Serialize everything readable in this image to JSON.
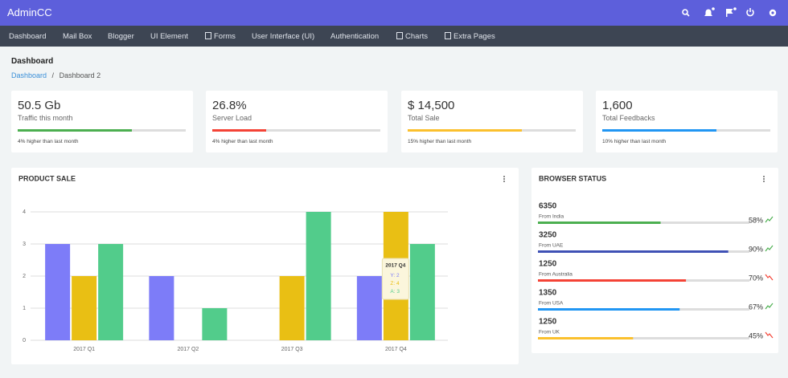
{
  "header": {
    "brand": "AdminCC"
  },
  "nav": [
    "Dashboard",
    "Mail Box",
    "Blogger",
    "UI Element",
    "Forms",
    "User Interface (UI)",
    "Authentication",
    "Charts",
    "Extra Pages"
  ],
  "page": {
    "title": "Dashboard",
    "breadcrumb": [
      "Dashboard",
      "Dashboard 2"
    ]
  },
  "stats": [
    {
      "value": "50.5 Gb",
      "label": "Traffic this month",
      "progress": 68,
      "color": "#4caf50",
      "note": "4% higher than last month"
    },
    {
      "value": "26.8%",
      "label": "Server Load",
      "progress": 32,
      "color": "#f44336",
      "note": "4% higher than last month"
    },
    {
      "value": "$ 14,500",
      "label": "Total Sale",
      "progress": 68,
      "color": "#fbc02d",
      "note": "15% higher than last month"
    },
    {
      "value": "1,600",
      "label": "Total Feedbacks",
      "progress": 68,
      "color": "#2196f3",
      "note": "10% higher than last month"
    }
  ],
  "chart_data": {
    "type": "bar",
    "title": "PRODUCT SALE",
    "categories": [
      "2017 Q1",
      "2017 Q2",
      "2017 Q3",
      "2017 Q4"
    ],
    "series": [
      {
        "name": "Y",
        "color": "#7d7cf8",
        "values": [
          3,
          2,
          0,
          2
        ]
      },
      {
        "name": "Z",
        "color": "#e9bf14",
        "values": [
          2,
          0,
          2,
          4
        ]
      },
      {
        "name": "A",
        "color": "#52cc8b",
        "values": [
          3,
          1,
          4,
          3
        ]
      }
    ],
    "ylim": [
      0,
      4
    ],
    "yticks": [
      0,
      1,
      2,
      3,
      4
    ],
    "grid": true,
    "tooltip_index": 3
  },
  "browser_status": {
    "title": "BROWSER STATUS",
    "rows": [
      {
        "value": 6350,
        "label": "From India",
        "percent": 58,
        "percent_label": "58%",
        "color": "#4caf50",
        "trend": "up"
      },
      {
        "value": 3250,
        "label": "From UAE",
        "percent": 90,
        "percent_label": "90%",
        "color": "#3f51b5",
        "trend": "up"
      },
      {
        "value": 1250,
        "label": "From Australia",
        "percent": 70,
        "percent_label": "70%",
        "color": "#f44336",
        "trend": "down"
      },
      {
        "value": 1350,
        "label": "From USA",
        "percent": 67,
        "percent_label": "67%",
        "color": "#2196f3",
        "trend": "up"
      },
      {
        "value": 1250,
        "label": "From UK",
        "percent": 45,
        "percent_label": "45%",
        "color": "#fbc02d",
        "trend": "down"
      }
    ]
  }
}
